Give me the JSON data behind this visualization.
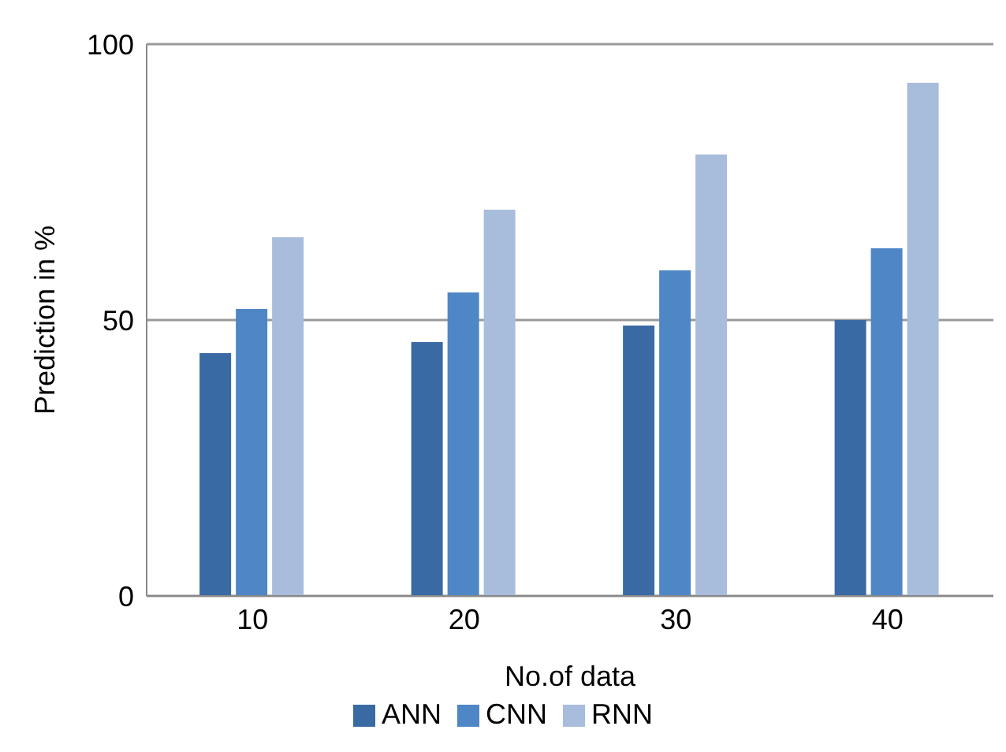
{
  "chart_data": {
    "type": "bar",
    "categories": [
      "10",
      "20",
      "30",
      "40"
    ],
    "xlabel": "No.of data",
    "ylabel": "Prediction in %",
    "ylim": [
      0,
      100
    ],
    "yticks": [
      0,
      50,
      100
    ],
    "grid": "y",
    "legend": "bottom",
    "series": [
      {
        "name": "ANN",
        "color": "#3a6aa4",
        "values": [
          44,
          46,
          49,
          50
        ]
      },
      {
        "name": "CNN",
        "color": "#4f86c6",
        "values": [
          52,
          55,
          59,
          63
        ]
      },
      {
        "name": "RNN",
        "color": "#a8bcdc",
        "values": [
          65,
          70,
          80,
          93
        ]
      }
    ]
  }
}
